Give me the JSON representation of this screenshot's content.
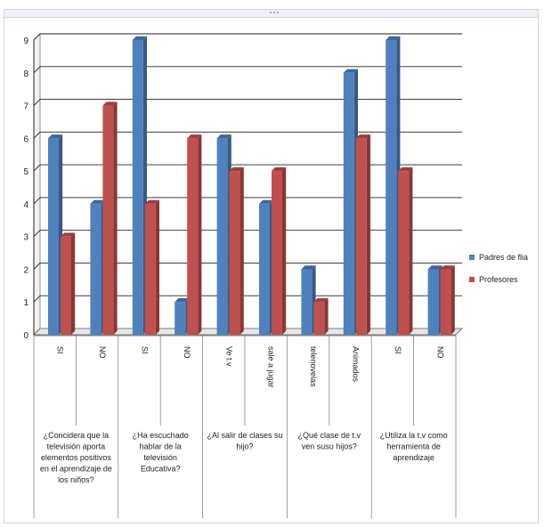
{
  "chart_data": {
    "type": "bar",
    "style": "3d-clustered-column",
    "categories": [
      "SI",
      "NO",
      "SI",
      "NO",
      "Ve t.v",
      "sale a jugar",
      "telenovelas",
      "Animados",
      "SI",
      "NO"
    ],
    "groups": [
      {
        "label": "¿Concideraque la televisión aporta elementos positivos en el aprendizaje de los niños?",
        "lines": [
          "¿Concidera que la",
          "televisión aporta",
          "elementos positivos",
          "en el aprendizaje de",
          "los niños?"
        ],
        "span": 2
      },
      {
        "label": "¿Ha escuchado hablar de la televisión Educativa?",
        "lines": [
          "¿Ha escuchado",
          "hablar de la",
          "televisión",
          "Educativa?"
        ],
        "span": 2
      },
      {
        "label": "¿Al salir de clases su hijo?",
        "lines": [
          "¿Al salir de clases su",
          "hijo?"
        ],
        "span": 2
      },
      {
        "label": "¿Qué clase de t.v ven susu hijos?",
        "lines": [
          "¿Qué clase de t.v",
          "ven susu hijos?"
        ],
        "span": 2
      },
      {
        "label": "¿Utiliza la t.v como herramienta de aprendizaje",
        "lines": [
          "¿Utiliza la t.v como",
          "herramienta de",
          "aprendizaje"
        ],
        "span": 2
      }
    ],
    "series": [
      {
        "name": "Padres de flia",
        "color": "#4f81bd",
        "values": [
          6,
          4,
          9,
          1,
          6,
          4,
          2,
          8,
          9,
          2
        ]
      },
      {
        "name": "Profesores",
        "color": "#c0504d",
        "values": [
          3,
          7,
          4,
          6,
          5,
          5,
          1,
          6,
          5,
          2
        ]
      }
    ],
    "yticks": [
      "0",
      "1",
      "2",
      "3",
      "4",
      "5",
      "6",
      "7",
      "8",
      "9"
    ],
    "ylim": [
      0,
      9
    ],
    "grid": true,
    "legend": "right"
  }
}
